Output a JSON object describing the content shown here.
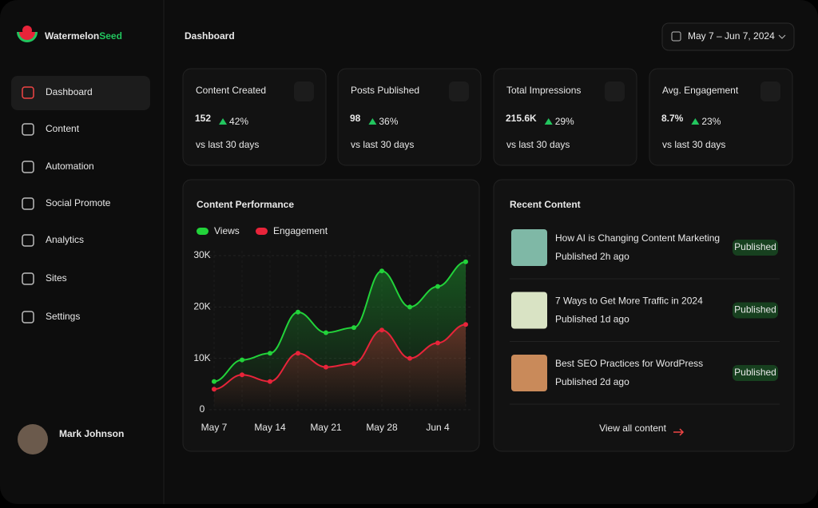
{
  "brand": {
    "name_a": "Watermelon",
    "name_b": "Seed"
  },
  "nav": [
    "Dashboard",
    "Content",
    "Automation",
    "Social Promote",
    "Analytics",
    "Sites",
    "Settings"
  ],
  "user": {
    "name": "Mark Johnson"
  },
  "header": {
    "title": "Dashboard",
    "date_range": "May 7 – Jun 7, 2024"
  },
  "stats": [
    {
      "label": "Content Created",
      "value": "152",
      "change": "42%",
      "note": "vs last 30 days"
    },
    {
      "label": "Posts Published",
      "value": "98",
      "change": "36%",
      "note": "vs last 30 days"
    },
    {
      "label": "Total Impressions",
      "value": "215.6K",
      "change": "29%",
      "note": "vs last 30 days"
    },
    {
      "label": "Avg. Engagement",
      "value": "8.7%",
      "change": "23%",
      "note": "vs last 30 days"
    }
  ],
  "chart_data": {
    "type": "line",
    "title": "Content Performance",
    "categories": [
      "May 7",
      null,
      "May 14",
      null,
      "May 21",
      null,
      "May 28",
      null,
      "Jun 4",
      null
    ],
    "series": [
      {
        "name": "Views",
        "color": "#22d33a",
        "values": [
          5500,
          9700,
          11000,
          19000,
          15000,
          16000,
          27000,
          20000,
          24000,
          28800
        ]
      },
      {
        "name": "Engagement",
        "color": "#e8243a",
        "values": [
          4000,
          6800,
          5500,
          11000,
          8300,
          9000,
          15500,
          10000,
          13000,
          16600
        ]
      }
    ],
    "ylim": [
      0,
      30000
    ],
    "yticks": [
      0,
      {
        "value": 10000,
        "label": "10K"
      },
      {
        "value": 20000,
        "label": "20K"
      },
      {
        "value": 30000,
        "label": "30K"
      }
    ],
    "grid": true
  },
  "recent": {
    "title": "Recent Content",
    "items": [
      {
        "title": "How AI is Changing Content Marketing",
        "time": "Published 2h ago",
        "status": "Published"
      },
      {
        "title": "7 Ways to Get More Traffic in 2024",
        "time": "Published 1d ago",
        "status": "Published"
      },
      {
        "title": "Best SEO Practices for WordPress",
        "time": "Published 2d ago",
        "status": "Published"
      }
    ],
    "link": "View all content"
  }
}
